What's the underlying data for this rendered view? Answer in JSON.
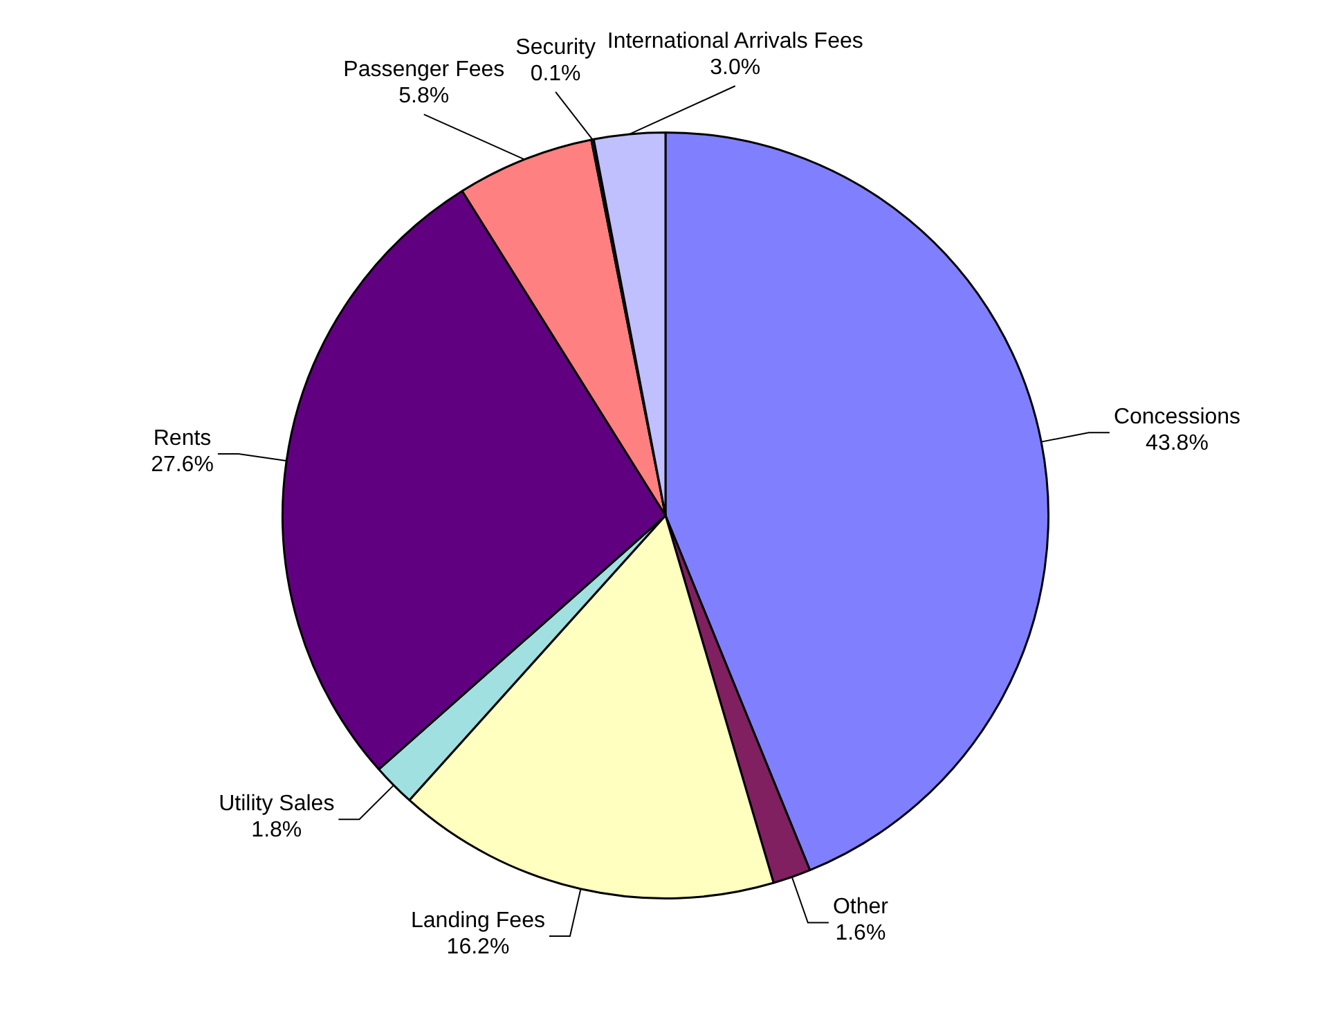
{
  "chart_data": {
    "type": "pie",
    "categories": [
      "Concessions",
      "Other",
      "Landing Fees",
      "Utility Sales",
      "Rents",
      "Passenger Fees",
      "Security",
      "International Arrivals Fees"
    ],
    "values": [
      43.8,
      1.6,
      16.2,
      1.8,
      27.6,
      5.8,
      0.1,
      3.0
    ],
    "value_labels": [
      "43.8%",
      "1.6%",
      "16.2%",
      "1.8%",
      "27.6%",
      "5.8%",
      "0.1%",
      "3.0%"
    ],
    "colors": [
      "#8080ff",
      "#802060",
      "#ffffc0",
      "#a0e0e0",
      "#600080",
      "#ff8080",
      "#3060c0",
      "#c0c0ff"
    ],
    "legend": false
  }
}
